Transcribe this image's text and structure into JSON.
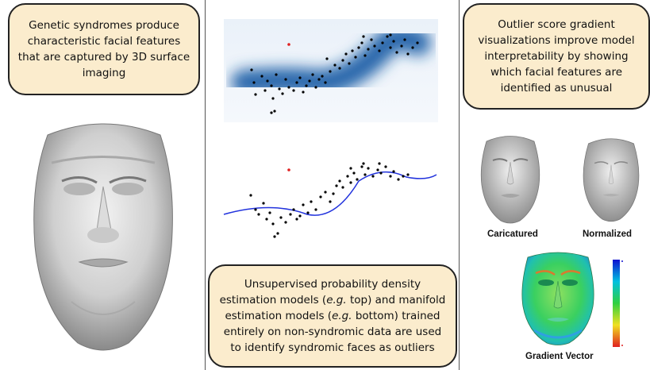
{
  "left": {
    "callout": "Genetic syndromes produce characteristic facial features that are captured by 3D surface imaging",
    "face_icon": "3d-face-scan"
  },
  "middle": {
    "callout_parts": [
      {
        "text": "Unsupervised probability density estimation models ("
      },
      {
        "text": "e.g.",
        "italic": true
      },
      {
        "text": " top) and manifold estimation models ("
      },
      {
        "text": "e.g.",
        "italic": true
      },
      {
        "text": " bottom) trained entirely on non-syndromic data are used to identify syndromic faces as outliers"
      }
    ],
    "density_color": "#1a5fa8",
    "curve_color": "#2233dd",
    "outlier_color": "#e02020"
  },
  "right": {
    "callout": "Outlier score gradient visualizations improve model interpretability by showing which facial features are identified as unusual",
    "caricatured_label": "Caricatured",
    "normalized_label": "Normalized",
    "gradient_label": "Gradient Vector",
    "colorbar_colors": [
      "#1010d0",
      "#00c0e0",
      "#30d040",
      "#f0e020",
      "#e02020"
    ]
  }
}
